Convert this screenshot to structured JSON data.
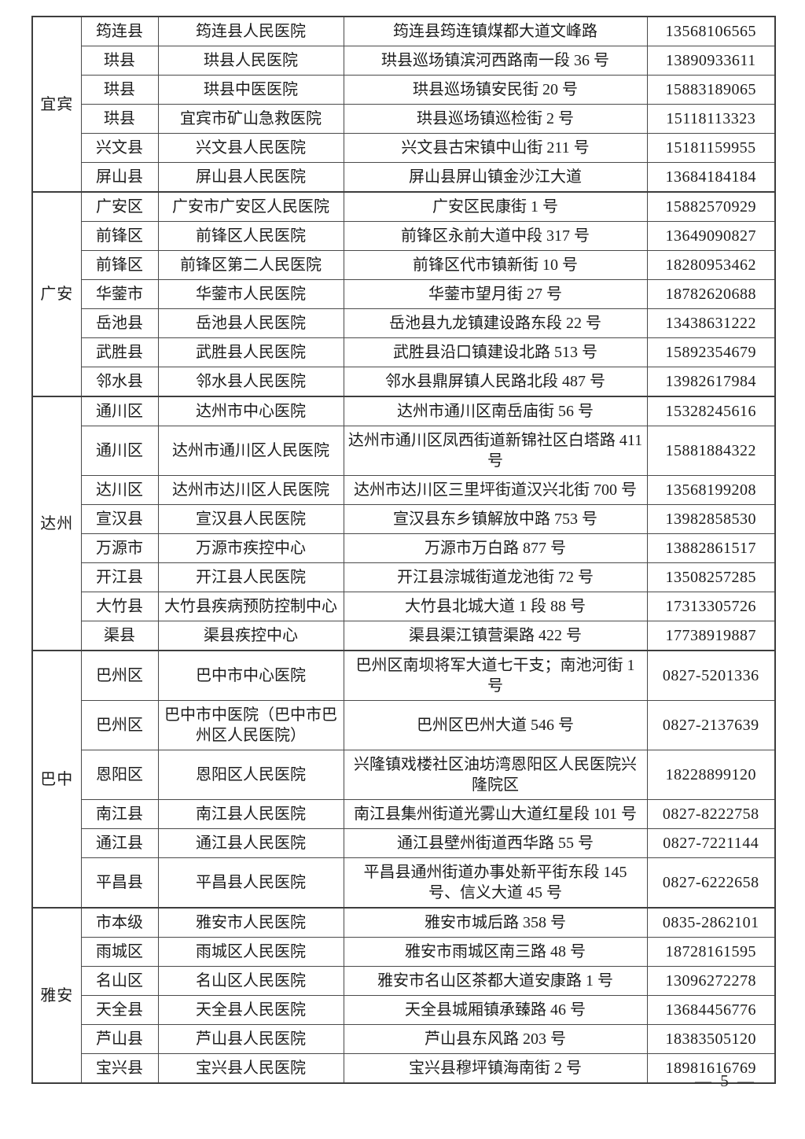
{
  "page": {
    "number_display": "— 5 —"
  },
  "table": {
    "sections": [
      {
        "city": "宜宾",
        "rows": [
          {
            "district": "筠连县",
            "hospital": "筠连县人民医院",
            "address": "筠连县筠连镇煤都大道文峰路",
            "phone": "13568106565"
          },
          {
            "district": "珙县",
            "hospital": "珙县人民医院",
            "address": "珙县巡场镇滨河西路南一段 36 号",
            "phone": "13890933611"
          },
          {
            "district": "珙县",
            "hospital": "珙县中医医院",
            "address": "珙县巡场镇安民街 20 号",
            "phone": "15883189065"
          },
          {
            "district": "珙县",
            "hospital": "宜宾市矿山急救医院",
            "address": "珙县巡场镇巡检街 2 号",
            "phone": "15118113323"
          },
          {
            "district": "兴文县",
            "hospital": "兴文县人民医院",
            "address": "兴文县古宋镇中山街 211 号",
            "phone": "15181159955"
          },
          {
            "district": "屏山县",
            "hospital": "屏山县人民医院",
            "address": "屏山县屏山镇金沙江大道",
            "phone": "13684184184"
          }
        ]
      },
      {
        "city": "广安",
        "rows": [
          {
            "district": "广安区",
            "hospital": "广安市广安区人民医院",
            "address": "广安区民康街 1 号",
            "phone": "15882570929"
          },
          {
            "district": "前锋区",
            "hospital": "前锋区人民医院",
            "address": "前锋区永前大道中段 317 号",
            "phone": "13649090827"
          },
          {
            "district": "前锋区",
            "hospital": "前锋区第二人民医院",
            "address": "前锋区代市镇新街 10 号",
            "phone": "18280953462"
          },
          {
            "district": "华蓥市",
            "hospital": "华蓥市人民医院",
            "address": "华蓥市望月街 27 号",
            "phone": "18782620688"
          },
          {
            "district": "岳池县",
            "hospital": "岳池县人民医院",
            "address": "岳池县九龙镇建设路东段 22 号",
            "phone": "13438631222"
          },
          {
            "district": "武胜县",
            "hospital": "武胜县人民医院",
            "address": "武胜县沿口镇建设北路 513 号",
            "phone": "15892354679"
          },
          {
            "district": "邻水县",
            "hospital": "邻水县人民医院",
            "address": "邻水县鼎屏镇人民路北段 487 号",
            "phone": "13982617984"
          }
        ]
      },
      {
        "city": "达州",
        "rows": [
          {
            "district": "通川区",
            "hospital": "达州市中心医院",
            "address": "达州市通川区南岳庙街 56 号",
            "phone": "15328245616"
          },
          {
            "district": "通川区",
            "hospital": "达州市通川区人民医院",
            "address": "达州市通川区凤西街道新锦社区白塔路 411 号",
            "phone": "15881884322"
          },
          {
            "district": "达川区",
            "hospital": "达州市达川区人民医院",
            "address": "达州市达川区三里坪街道汉兴北街 700 号",
            "phone": "13568199208"
          },
          {
            "district": "宣汉县",
            "hospital": "宣汉县人民医院",
            "address": "宣汉县东乡镇解放中路 753 号",
            "phone": "13982858530"
          },
          {
            "district": "万源市",
            "hospital": "万源市疾控中心",
            "address": "万源市万白路 877 号",
            "phone": "13882861517"
          },
          {
            "district": "开江县",
            "hospital": "开江县人民医院",
            "address": "开江县淙城街道龙池街 72 号",
            "phone": "13508257285"
          },
          {
            "district": "大竹县",
            "hospital": "大竹县疾病预防控制中心",
            "address": "大竹县北城大道 1 段 88 号",
            "phone": "17313305726"
          },
          {
            "district": "渠县",
            "hospital": "渠县疾控中心",
            "address": "渠县渠江镇营渠路 422 号",
            "phone": "17738919887"
          }
        ]
      },
      {
        "city": "巴中",
        "rows": [
          {
            "district": "巴州区",
            "hospital": "巴中市中心医院",
            "address": "巴州区南坝将军大道七干支；南池河街 1 号",
            "phone": "0827-5201336"
          },
          {
            "district": "巴州区",
            "hospital": "巴中市中医院（巴中市巴州区人民医院）",
            "address": "巴州区巴州大道 546 号",
            "phone": "0827-2137639"
          },
          {
            "district": "恩阳区",
            "hospital": "恩阳区人民医院",
            "address": "兴隆镇戏楼社区油坊湾恩阳区人民医院兴隆院区",
            "phone": "18228899120"
          },
          {
            "district": "南江县",
            "hospital": "南江县人民医院",
            "address": "南江县集州街道光雾山大道红星段 101 号",
            "phone": "0827-8222758"
          },
          {
            "district": "通江县",
            "hospital": "通江县人民医院",
            "address": "通江县壁州街道西华路 55 号",
            "phone": "0827-7221144"
          },
          {
            "district": "平昌县",
            "hospital": "平昌县人民医院",
            "address": "平昌县通州街道办事处新平街东段 145 号、信义大道 45 号",
            "phone": "0827-6222658"
          }
        ]
      },
      {
        "city": "雅安",
        "rows": [
          {
            "district": "市本级",
            "hospital": "雅安市人民医院",
            "address": "雅安市城后路 358 号",
            "phone": "0835-2862101"
          },
          {
            "district": "雨城区",
            "hospital": "雨城区人民医院",
            "address": "雅安市雨城区南三路 48 号",
            "phone": "18728161595"
          },
          {
            "district": "名山区",
            "hospital": "名山区人民医院",
            "address": "雅安市名山区茶都大道安康路 1 号",
            "phone": "13096272278"
          },
          {
            "district": "天全县",
            "hospital": "天全县人民医院",
            "address": "天全县城厢镇承臻路 46 号",
            "phone": "13684456776"
          },
          {
            "district": "芦山县",
            "hospital": "芦山县人民医院",
            "address": "芦山县东风路 203 号",
            "phone": "18383505120"
          },
          {
            "district": "宝兴县",
            "hospital": "宝兴县人民医院",
            "address": "宝兴县穆坪镇海南街 2 号",
            "phone": "18981616769"
          }
        ]
      }
    ]
  }
}
